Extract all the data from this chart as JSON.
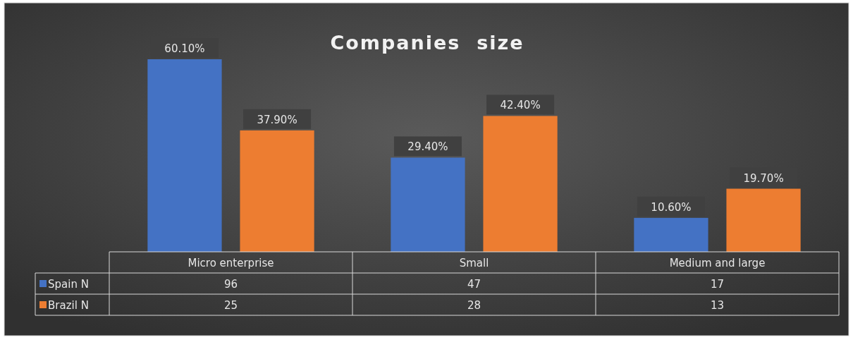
{
  "chart_data": {
    "type": "bar",
    "title": "Companies  size",
    "categories": [
      "Micro enterprise",
      "Small",
      "Medium and large"
    ],
    "series": [
      {
        "name": "Spain N",
        "color": "#4472c4",
        "values": [
          60.1,
          29.4,
          10.6
        ],
        "value_labels": [
          "60.10%",
          "29.40%",
          "10.60%"
        ]
      },
      {
        "name": "Brazil N",
        "color": "#ed7d31",
        "values": [
          37.9,
          42.4,
          19.7
        ],
        "value_labels": [
          "37.90%",
          "42.40%",
          "19.70%"
        ]
      }
    ],
    "annotations": [
      "96",
      "47",
      "17",
      "25",
      "28",
      "13"
    ],
    "legend": "bottom"
  }
}
